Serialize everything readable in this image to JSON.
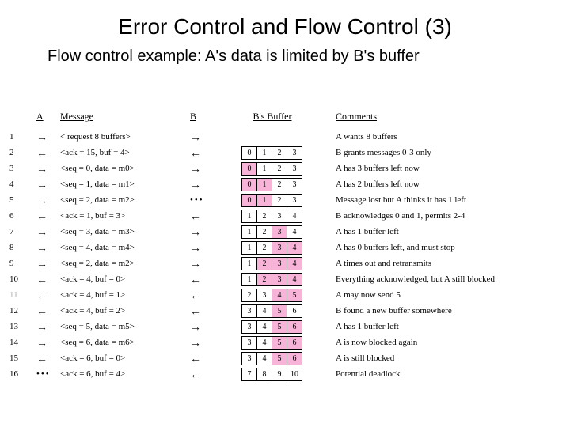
{
  "title": "Error Control and Flow Control (3)",
  "subtitle": "Flow control example: A's data is limited by B's buffer",
  "headers": {
    "a": "A",
    "message": "Message",
    "b": "B",
    "buffer": "B's Buffer",
    "comments": "Comments"
  },
  "colors": {
    "shaded_bg": "#f8b4d8",
    "text": "#000000",
    "pale": "#b0b0b0"
  },
  "rows": [
    {
      "n": "1",
      "a": "→",
      "msg": "< request 8 buffers>",
      "b": "→",
      "buf": null,
      "com": "A wants 8 buffers"
    },
    {
      "n": "2",
      "a": "←",
      "msg": "<ack = 15, buf = 4>",
      "b": "←",
      "buf": [
        "0",
        "1",
        "2",
        "3"
      ],
      "shaded": [],
      "com": "B grants messages 0-3 only"
    },
    {
      "n": "3",
      "a": "→",
      "msg": "<seq = 0, data = m0>",
      "b": "→",
      "buf": [
        "0",
        "1",
        "2",
        "3"
      ],
      "shaded": [
        0
      ],
      "com": "A has 3 buffers left now"
    },
    {
      "n": "4",
      "a": "→",
      "msg": "<seq = 1, data = m1>",
      "b": "→",
      "buf": [
        "0",
        "1",
        "2",
        "3"
      ],
      "shaded": [
        0,
        1
      ],
      "com": "A has 2 buffers left now"
    },
    {
      "n": "5",
      "a": "→",
      "msg": "<seq = 2, data = m2>",
      "b": "•••",
      "buf": [
        "0",
        "1",
        "2",
        "3"
      ],
      "shaded": [
        0,
        1
      ],
      "com": "Message lost but A thinks it has 1 left"
    },
    {
      "n": "6",
      "a": "←",
      "msg": "<ack = 1, buf = 3>",
      "b": "←",
      "buf": [
        "1",
        "2",
        "3",
        "4"
      ],
      "shaded": [],
      "com": "B acknowledges 0 and 1, permits 2-4"
    },
    {
      "n": "7",
      "a": "→",
      "msg": "<seq = 3, data = m3>",
      "b": "→",
      "buf": [
        "1",
        "2",
        "3",
        "4"
      ],
      "shaded": [
        2
      ],
      "com": "A has 1 buffer left"
    },
    {
      "n": "8",
      "a": "→",
      "msg": "<seq = 4, data = m4>",
      "b": "→",
      "buf": [
        "1",
        "2",
        "3",
        "4"
      ],
      "shaded": [
        2,
        3
      ],
      "com": "A has 0 buffers left, and must stop"
    },
    {
      "n": "9",
      "a": "→",
      "msg": "<seq = 2, data = m2>",
      "b": "→",
      "buf": [
        "1",
        "2",
        "3",
        "4"
      ],
      "shaded": [
        1,
        2,
        3
      ],
      "com": "A times out and retransmits"
    },
    {
      "n": "10",
      "a": "←",
      "msg": "<ack = 4, buf = 0>",
      "b": "←",
      "buf": [
        "1",
        "2",
        "3",
        "4"
      ],
      "shaded": [
        1,
        2,
        3
      ],
      "com": "Everything acknowledged, but A still blocked"
    },
    {
      "n": "11",
      "pale": true,
      "a": "←",
      "msg": "<ack = 4, buf = 1>",
      "b": "←",
      "buf": [
        "2",
        "3",
        "4",
        "5"
      ],
      "shaded": [
        2,
        3
      ],
      "com": "A may now send 5"
    },
    {
      "n": "12",
      "a": "←",
      "msg": "<ack = 4, buf = 2>",
      "b": "←",
      "buf": [
        "3",
        "4",
        "5",
        "6"
      ],
      "shaded": [
        2
      ],
      "com": "B found a new buffer somewhere"
    },
    {
      "n": "13",
      "a": "→",
      "msg": "<seq = 5, data = m5>",
      "b": "→",
      "buf": [
        "3",
        "4",
        "5",
        "6"
      ],
      "shaded": [
        2,
        3
      ],
      "com": "A has 1 buffer left"
    },
    {
      "n": "14",
      "a": "→",
      "msg": "<seq = 6, data = m6>",
      "b": "→",
      "buf": [
        "3",
        "4",
        "5",
        "6"
      ],
      "shaded": [
        2,
        3
      ],
      "com": "A is now blocked again"
    },
    {
      "n": "15",
      "a": "←",
      "msg": "<ack = 6, buf = 0>",
      "b": "←",
      "buf": [
        "3",
        "4",
        "5",
        "6"
      ],
      "shaded": [
        2,
        3
      ],
      "com": "A is still blocked"
    },
    {
      "n": "16",
      "a": "•••",
      "msg": "<ack = 6, buf = 4>",
      "b": "←",
      "buf": [
        "7",
        "8",
        "9",
        "10"
      ],
      "shaded": [],
      "com": "Potential deadlock"
    }
  ]
}
